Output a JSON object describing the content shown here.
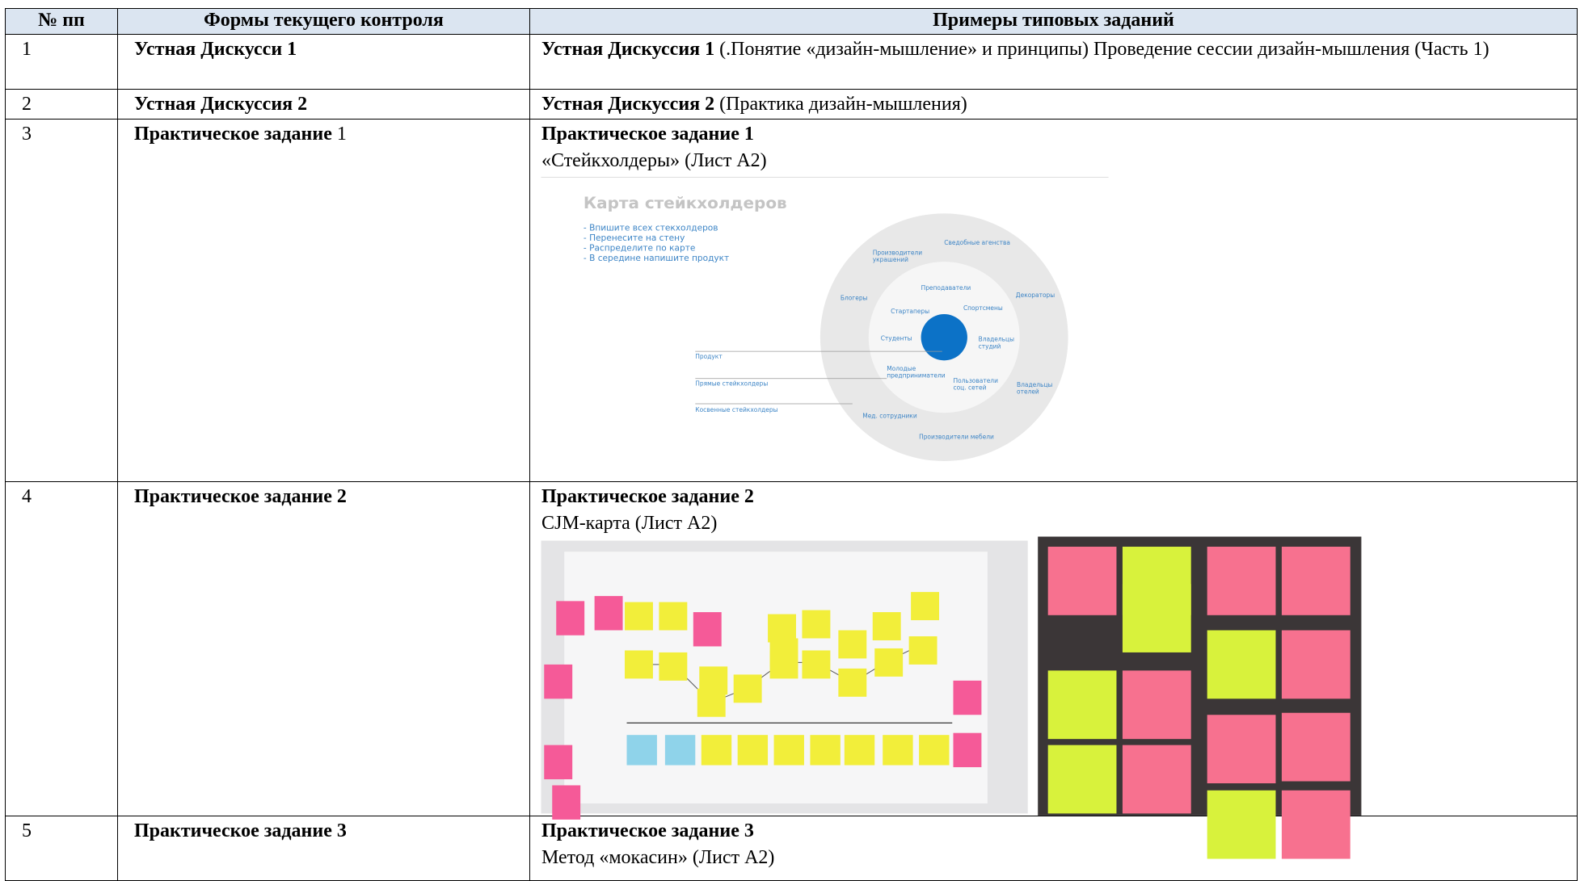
{
  "table": {
    "header": [
      "№ пп",
      "Формы текущего контроля",
      "Примеры типовых заданий"
    ],
    "rows": [
      {
        "num": "1",
        "form": "Устная Дискусси 1",
        "task_title": "Устная Дискуссия 1",
        "task_text": "(.Понятие «дизайн-мышление» и принципы) Проведение сессии дизайн-мышления (Часть 1)"
      },
      {
        "num": "2",
        "form": "Устная Дискуссия 2",
        "task_title": "Устная Дискуссия 2",
        "task_text": "(Практика дизайн-мышления)"
      },
      {
        "num": "3",
        "form": "Практическое  задание",
        "form_suffix": "1",
        "task_title": "Практическое задание 1",
        "task_text": "«Стейкхолдеры» (Лист А2)"
      },
      {
        "num": "4",
        "form": "Практическое задание 2",
        "task_title": "Практическое задание 2",
        "task_text": "CJM-карта (Лист А2)"
      },
      {
        "num": "5",
        "form": "Практическое задание 3",
        "task_title": "Практическое задание 3",
        "task_text": "Метод «мокасин» (Лист А2)"
      }
    ]
  },
  "stakeholder_map": {
    "title": "Карта стейкхолдеров",
    "bullets": [
      "- Впишите всех стекхолдеров",
      "- Перенесите на стену",
      "- Распределите по карте",
      "- В середине напишите продукт"
    ],
    "labels": [
      "Сведобные агенства",
      "Производители",
      "украшений",
      "Преподаватели",
      "Блогеры",
      "Декораторы",
      "Стартаперы",
      "Спортсмены",
      "Студенты",
      "Владельцы",
      "студий",
      "Продукт",
      "Молодые",
      "предприниматели",
      "Прямые стейкхолдеры",
      "Пользователи",
      "соц. сетей",
      "Владельцы",
      "отелей",
      "Косвенные стейкхолдеры",
      "Мед. сотрудники",
      "Производители мебели"
    ]
  }
}
